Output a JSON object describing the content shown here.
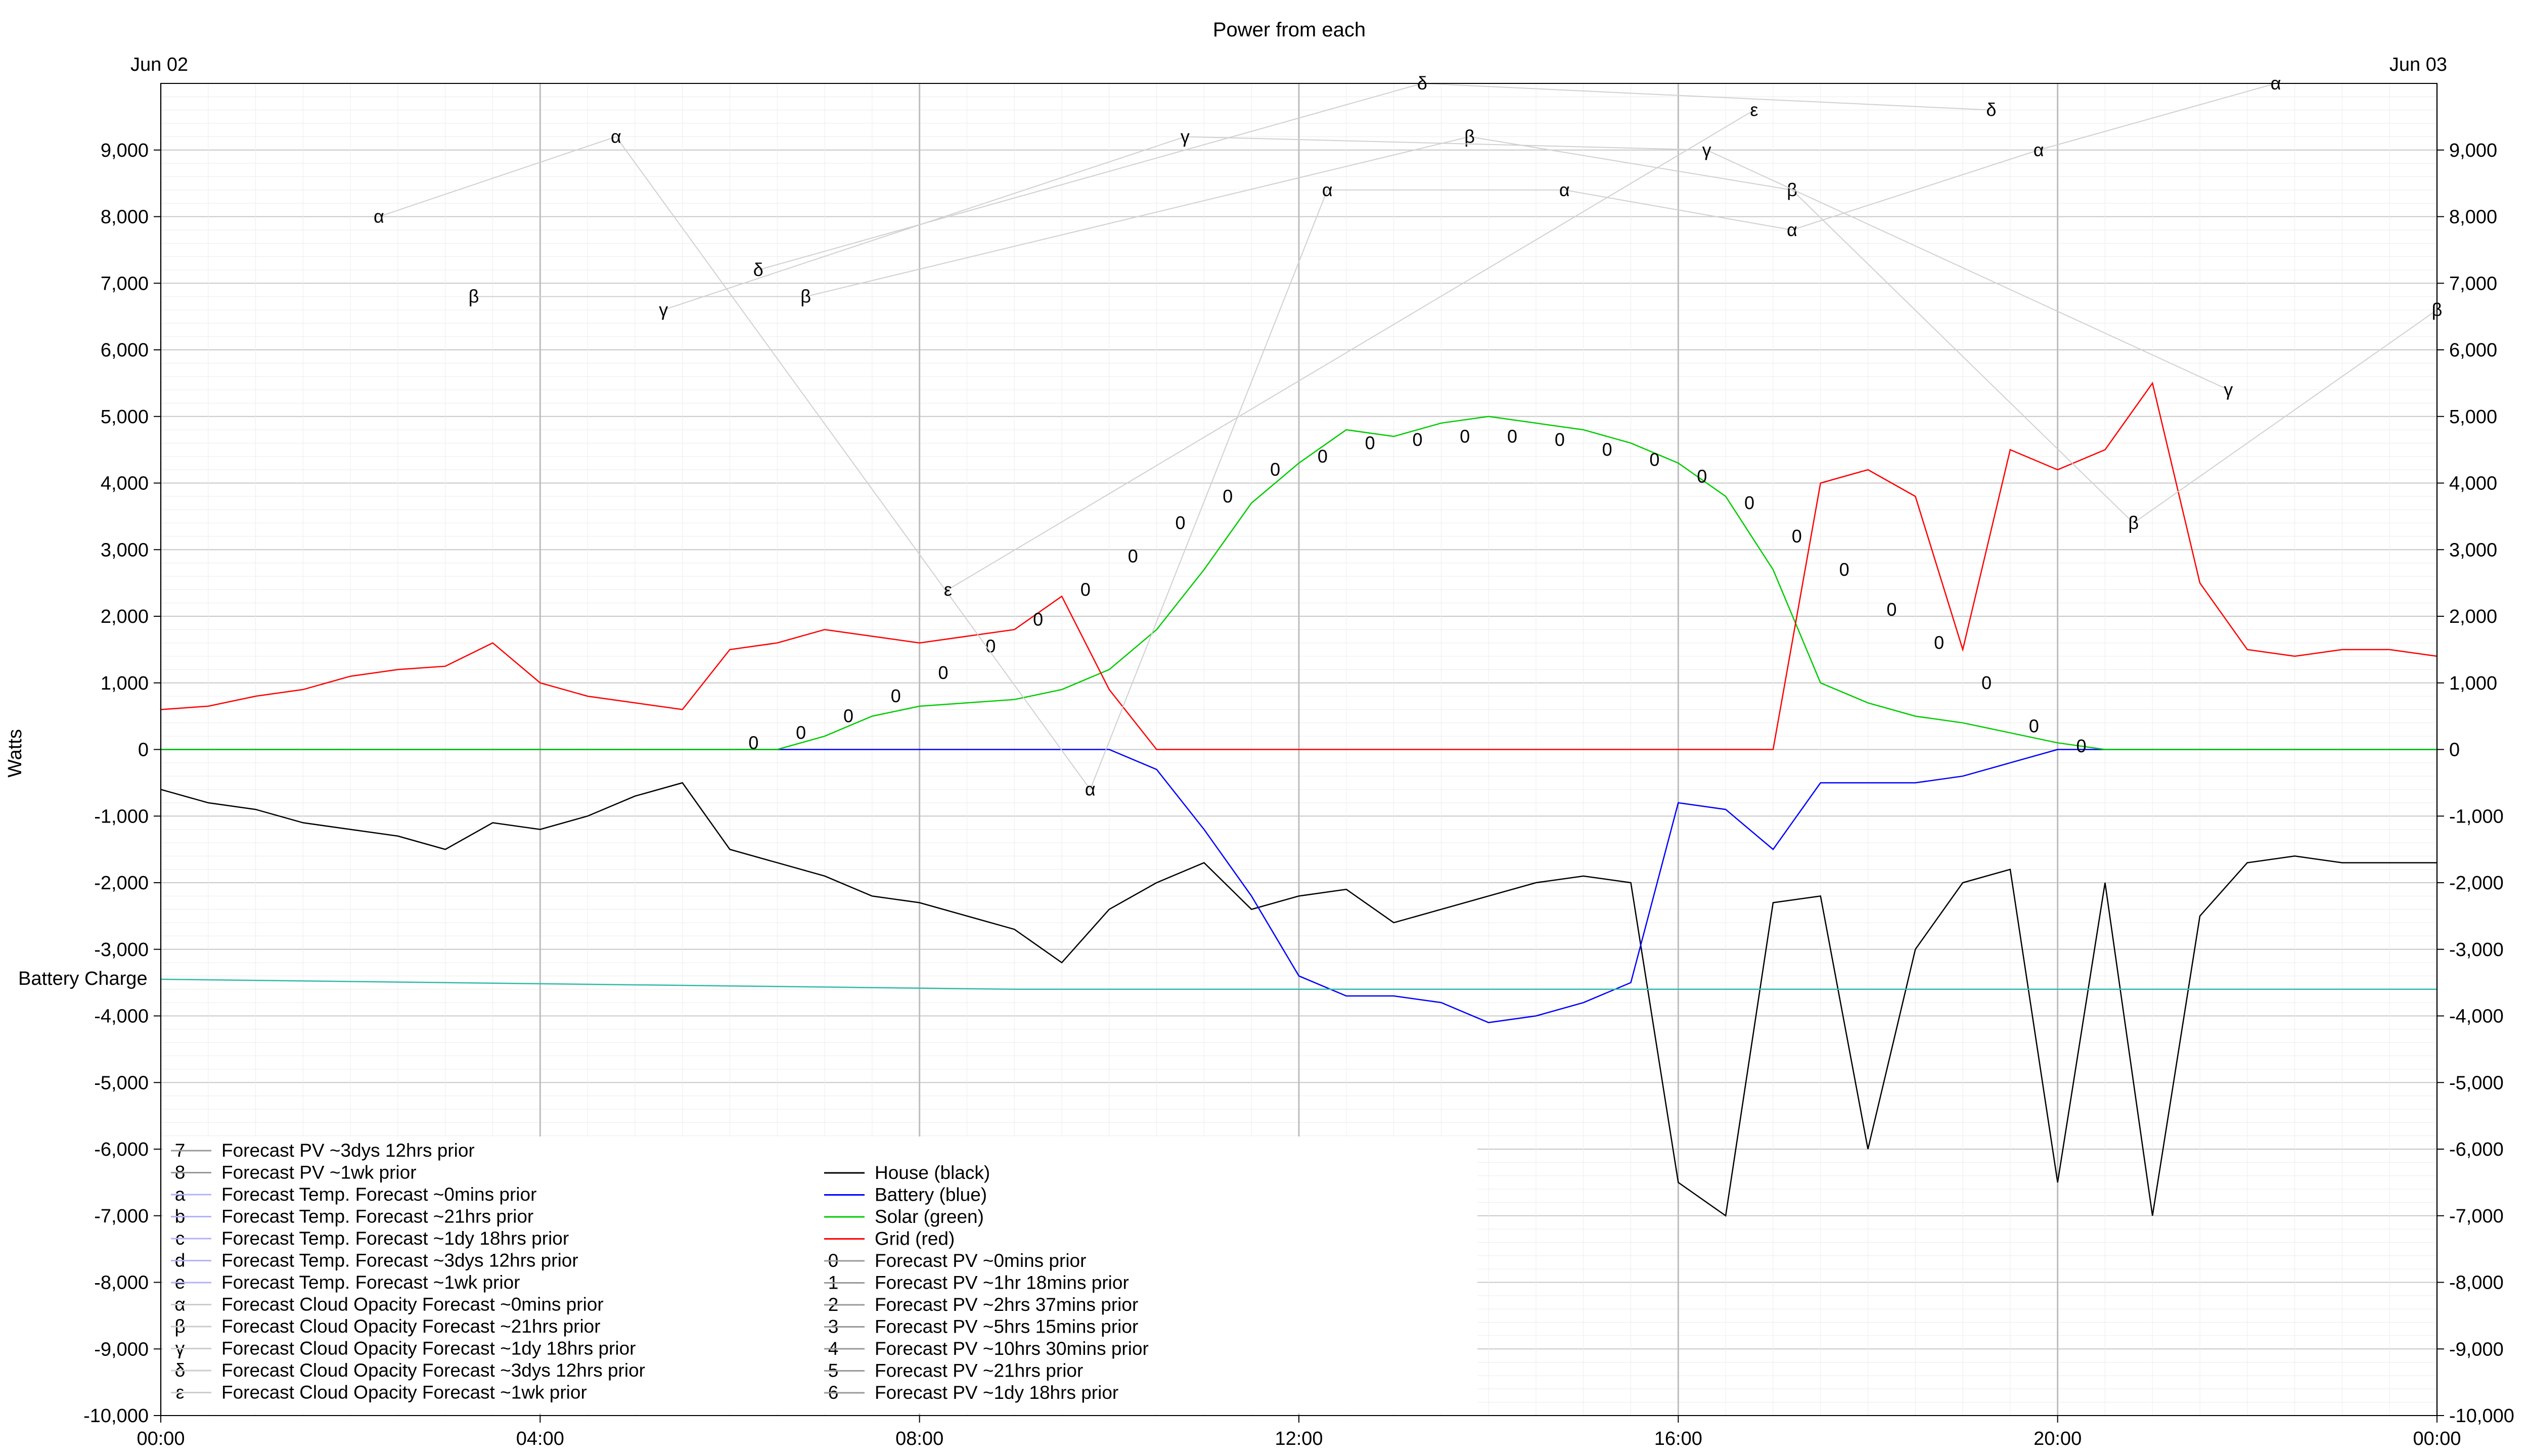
{
  "chart_data": {
    "type": "line",
    "title": "Power from each",
    "ylabel": "Watts",
    "ylim": [
      -10000,
      10000
    ],
    "xlim_hours": [
      0,
      24
    ],
    "y_ticks": [
      -10000,
      -9000,
      -8000,
      -7000,
      -6000,
      -5000,
      -4000,
      -3000,
      -2000,
      -1000,
      0,
      1000,
      2000,
      3000,
      4000,
      5000,
      6000,
      7000,
      8000,
      9000
    ],
    "y_tick_labels": [
      "-10,000",
      "-9,000",
      "-8,000",
      "-7,000",
      "-6,000",
      "-5,000",
      "-4,000",
      "-3,000",
      "-2,000",
      "-1,000",
      "0",
      "1,000",
      "2,000",
      "3,000",
      "4,000",
      "5,000",
      "6,000",
      "7,000",
      "8,000",
      "9,000"
    ],
    "x_tick_labels": [
      "00:00",
      "04:00",
      "08:00",
      "12:00",
      "16:00",
      "20:00",
      "00:00"
    ],
    "x_tick_hours": [
      0,
      4,
      8,
      12,
      16,
      20,
      24
    ],
    "date_labels": [
      "Jun 02",
      "Jun 03"
    ],
    "annotations": [
      "Battery Charge"
    ],
    "grid": true,
    "legend_placement": "bottom-left",
    "series": [
      {
        "name": "House (black)",
        "color": "#000000",
        "x": [
          0,
          0.5,
          1,
          1.5,
          2,
          2.5,
          3,
          3.5,
          4,
          4.5,
          5,
          5.5,
          6,
          6.5,
          7,
          7.5,
          8,
          8.5,
          9,
          9.5,
          10,
          10.5,
          11,
          11.5,
          12,
          12.5,
          13,
          13.5,
          14,
          14.5,
          15,
          15.5,
          16,
          16.5,
          17,
          17.5,
          18,
          18.5,
          19,
          19.5,
          20,
          20.5,
          21,
          21.5,
          22,
          22.5,
          23,
          23.5,
          24
        ],
        "values": [
          -600,
          -800,
          -900,
          -1100,
          -1200,
          -1300,
          -1500,
          -1100,
          -1200,
          -1000,
          -700,
          -500,
          -1500,
          -1700,
          -1900,
          -2200,
          -2300,
          -2500,
          -2700,
          -3200,
          -2400,
          -2000,
          -1700,
          -2400,
          -2200,
          -2100,
          -2600,
          -2400,
          -2200,
          -2000,
          -1900,
          -2000,
          -6500,
          -7000,
          -2300,
          -2200,
          -6000,
          -3000,
          -2000,
          -1800,
          -6500,
          -2000,
          -7000,
          -2500,
          -1700,
          -1600,
          -1700,
          -1700,
          -1700
        ]
      },
      {
        "name": "Battery (blue)",
        "color": "#0000ff",
        "x": [
          0,
          1,
          2,
          3,
          4,
          5,
          6,
          7,
          8,
          9,
          10,
          10.5,
          11,
          11.5,
          12,
          12.5,
          13,
          13.5,
          14,
          14.5,
          15,
          15.5,
          16,
          16.5,
          17,
          17.5,
          18,
          18.5,
          19,
          19.5,
          20,
          20.5,
          21,
          22,
          23,
          24
        ],
        "values": [
          0,
          0,
          0,
          0,
          0,
          0,
          0,
          0,
          0,
          0,
          0,
          -300,
          -1200,
          -2200,
          -3400,
          -3700,
          -3700,
          -3800,
          -4100,
          -4000,
          -3800,
          -3500,
          -800,
          -900,
          -1500,
          -500,
          -500,
          -500,
          -400,
          -200,
          0,
          0,
          0,
          0,
          0,
          0
        ]
      },
      {
        "name": "Solar (green)",
        "color": "#00cc00",
        "x": [
          0,
          6.5,
          7,
          7.5,
          8,
          8.5,
          9,
          9.5,
          10,
          10.5,
          11,
          11.5,
          12,
          12.5,
          13,
          13.5,
          14,
          14.5,
          15,
          15.5,
          16,
          16.5,
          17,
          17.5,
          18,
          18.5,
          19,
          19.5,
          20,
          20.5,
          24
        ],
        "values": [
          0,
          0,
          200,
          500,
          650,
          700,
          750,
          900,
          1200,
          1800,
          2700,
          3700,
          4300,
          4800,
          4700,
          4900,
          5000,
          4900,
          4800,
          4600,
          4300,
          3800,
          2700,
          1000,
          700,
          500,
          400,
          250,
          100,
          0,
          0
        ]
      },
      {
        "name": "Grid (red)",
        "color": "#ff0000",
        "x": [
          0,
          0.5,
          1,
          1.5,
          2,
          2.5,
          3,
          3.5,
          4,
          4.5,
          5,
          5.5,
          6,
          6.5,
          7,
          7.5,
          8,
          8.5,
          9,
          9.5,
          10,
          10.5,
          11,
          11.5,
          12,
          12.5,
          13,
          13.5,
          14,
          14.5,
          15,
          15.5,
          16,
          16.5,
          17,
          17.5,
          18,
          18.5,
          19,
          19.5,
          20,
          20.5,
          21,
          21.5,
          22,
          22.5,
          23,
          23.5,
          24
        ],
        "values": [
          600,
          650,
          800,
          900,
          1100,
          1200,
          1250,
          1600,
          1000,
          800,
          700,
          600,
          1500,
          1600,
          1800,
          1700,
          1600,
          1700,
          1800,
          2300,
          900,
          0,
          0,
          0,
          0,
          0,
          0,
          0,
          0,
          0,
          0,
          0,
          0,
          0,
          0,
          4000,
          4200,
          3800,
          1500,
          4500,
          4200,
          4500,
          5500,
          2500,
          1500,
          1400,
          1500,
          1500,
          1400
        ]
      },
      {
        "name": "Battery Charge",
        "color": "#2fb9a8",
        "x": [
          0,
          3,
          6,
          9,
          12,
          15,
          18,
          21,
          24
        ],
        "values": [
          -3450,
          -3500,
          -3550,
          -3600,
          -3600,
          -3600,
          -3600,
          -3600,
          -3600
        ]
      }
    ]
  },
  "legend": {
    "left": [
      {
        "symbol": "7",
        "label": "Forecast PV ~3dys 12hrs prior",
        "color": "#999999"
      },
      {
        "symbol": "8",
        "label": "Forecast PV ~1wk prior",
        "color": "#999999"
      },
      {
        "symbol": "a",
        "label": "Forecast Temp. Forecast ~0mins prior",
        "color": "#b3b3ff"
      },
      {
        "symbol": "b",
        "label": "Forecast Temp. Forecast ~21hrs prior",
        "color": "#b3b3ff"
      },
      {
        "symbol": "c",
        "label": "Forecast Temp. Forecast ~1dy 18hrs prior",
        "color": "#b3b3ff"
      },
      {
        "symbol": "d",
        "label": "Forecast Temp. Forecast ~3dys 12hrs prior",
        "color": "#b3b3ff"
      },
      {
        "symbol": "e",
        "label": "Forecast Temp. Forecast ~1wk prior",
        "color": "#b3b3ff"
      },
      {
        "symbol": "α",
        "label": "Forecast Cloud Opacity Forecast ~0mins prior",
        "color": "#cccccc"
      },
      {
        "symbol": "β",
        "label": "Forecast Cloud Opacity Forecast ~21hrs prior",
        "color": "#cccccc"
      },
      {
        "symbol": "γ",
        "label": "Forecast Cloud Opacity Forecast ~1dy 18hrs prior",
        "color": "#cccccc"
      },
      {
        "symbol": "δ",
        "label": "Forecast Cloud Opacity Forecast ~3dys 12hrs prior",
        "color": "#cccccc"
      },
      {
        "symbol": "ε",
        "label": "Forecast Cloud Opacity Forecast ~1wk prior",
        "color": "#cccccc"
      }
    ],
    "right": [
      {
        "symbol": "",
        "label": "House (black)",
        "color": "#000000"
      },
      {
        "symbol": "",
        "label": "Battery (blue)",
        "color": "#0000ff"
      },
      {
        "symbol": "",
        "label": "Solar (green)",
        "color": "#00cc00"
      },
      {
        "symbol": "",
        "label": "Grid (red)",
        "color": "#ff0000"
      },
      {
        "symbol": "0",
        "label": "Forecast PV ~0mins prior",
        "color": "#999999"
      },
      {
        "symbol": "1",
        "label": "Forecast PV ~1hr 18mins prior",
        "color": "#999999"
      },
      {
        "symbol": "2",
        "label": "Forecast PV ~2hrs 37mins prior",
        "color": "#999999"
      },
      {
        "symbol": "3",
        "label": "Forecast PV ~5hrs 15mins prior",
        "color": "#999999"
      },
      {
        "symbol": "4",
        "label": "Forecast PV ~10hrs 30mins prior",
        "color": "#999999"
      },
      {
        "symbol": "5",
        "label": "Forecast PV ~21hrs prior",
        "color": "#999999"
      },
      {
        "symbol": "6",
        "label": "Forecast PV ~1dy 18hrs prior",
        "color": "#999999"
      }
    ]
  },
  "forecast_pv_markers": {
    "x": [
      6.25,
      6.75,
      7.25,
      7.75,
      8.25,
      8.75,
      9.25,
      9.75,
      10.25,
      10.75,
      11.25,
      11.75,
      12.25,
      12.75,
      13.25,
      13.75,
      14.25,
      14.75,
      15.25,
      15.75,
      16.25,
      16.75,
      17.25,
      17.75,
      18.25,
      18.75,
      19.25,
      19.75,
      20.25
    ],
    "values": [
      100,
      250,
      500,
      800,
      1150,
      1550,
      1950,
      2400,
      2900,
      3400,
      3800,
      4200,
      4400,
      4600,
      4650,
      4700,
      4700,
      4650,
      4500,
      4350,
      4100,
      3700,
      3200,
      2700,
      2100,
      1600,
      1000,
      350,
      50
    ]
  },
  "cloud_markers": {
    "alpha": {
      "x": [
        2.3,
        4.8,
        9.8,
        12.3,
        14.8,
        17.2,
        19.8,
        22.3
      ],
      "values": [
        8000,
        9200,
        -600,
        8400,
        8400,
        7800,
        9000,
        10000
      ]
    },
    "beta": {
      "x": [
        3.3,
        6.8,
        13.8,
        17.2,
        20.8,
        24.2
      ],
      "values": [
        6800,
        6800,
        9200,
        8400,
        3400,
        6600
      ]
    },
    "gamma": {
      "x": [
        5.3,
        10.8,
        16.3,
        21.8
      ],
      "values": [
        6600,
        9200,
        9000,
        5400
      ]
    },
    "delta": {
      "x": [
        6.3,
        13.3,
        19.3
      ],
      "values": [
        7200,
        10000,
        9600
      ]
    },
    "epsilon": {
      "x": [
        8.3,
        16.8
      ],
      "values": [
        2400,
        9600
      ]
    }
  }
}
